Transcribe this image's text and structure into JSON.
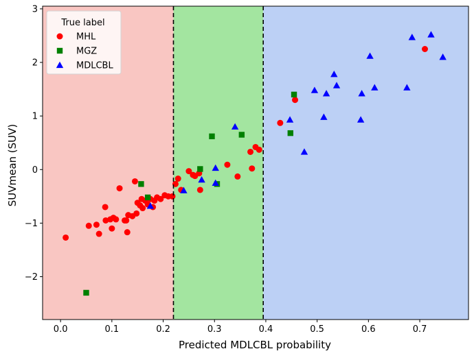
{
  "chart_data": {
    "type": "scatter",
    "title": "",
    "xlabel": "Predicted MDLCBL probability",
    "ylabel": "SUVmean (SUV)",
    "xlim": [
      -0.035,
      0.795
    ],
    "ylim": [
      -2.8,
      3.05
    ],
    "xticks": [
      0.0,
      0.1,
      0.2,
      0.3,
      0.4,
      0.5,
      0.6,
      0.7
    ],
    "xtick_labels": [
      "0.0",
      "0.1",
      "0.2",
      "0.3",
      "0.4",
      "0.5",
      "0.6",
      "0.7"
    ],
    "yticks": [
      -2,
      -1,
      0,
      1,
      2,
      3
    ],
    "ytick_labels": [
      "−2",
      "−1",
      "0",
      "1",
      "2",
      "3"
    ],
    "grid": false,
    "thresholds": [
      0.22,
      0.395
    ],
    "regions": [
      {
        "from": -0.035,
        "to": 0.22,
        "color": "#f9c6c2"
      },
      {
        "from": 0.22,
        "to": 0.395,
        "color": "#a3e5a0"
      },
      {
        "from": 0.395,
        "to": 0.795,
        "color": "#bcd0f5"
      }
    ],
    "legend": {
      "title": "True label",
      "placement": "top-left",
      "entries": [
        "MHL",
        "MGZ",
        "MDLCBL"
      ]
    },
    "series": [
      {
        "name": "MHL",
        "marker": "circle",
        "color": "#ff0000",
        "points": [
          [
            0.01,
            -1.27
          ],
          [
            0.055,
            -1.05
          ],
          [
            0.07,
            -1.03
          ],
          [
            0.075,
            -1.2
          ],
          [
            0.087,
            -0.7
          ],
          [
            0.088,
            -0.95
          ],
          [
            0.097,
            -0.93
          ],
          [
            0.1,
            -1.1
          ],
          [
            0.103,
            -0.9
          ],
          [
            0.108,
            -0.93
          ],
          [
            0.115,
            -0.35
          ],
          [
            0.125,
            -0.95
          ],
          [
            0.128,
            -0.95
          ],
          [
            0.13,
            -1.17
          ],
          [
            0.132,
            -0.85
          ],
          [
            0.14,
            -0.87
          ],
          [
            0.145,
            -0.22
          ],
          [
            0.148,
            -0.82
          ],
          [
            0.15,
            -0.62
          ],
          [
            0.155,
            -0.67
          ],
          [
            0.158,
            -0.55
          ],
          [
            0.16,
            -0.72
          ],
          [
            0.165,
            -0.58
          ],
          [
            0.17,
            -0.65
          ],
          [
            0.175,
            -0.55
          ],
          [
            0.18,
            -0.7
          ],
          [
            0.183,
            -0.58
          ],
          [
            0.188,
            -0.52
          ],
          [
            0.195,
            -0.55
          ],
          [
            0.203,
            -0.48
          ],
          [
            0.21,
            -0.5
          ],
          [
            0.218,
            -0.5
          ],
          [
            0.224,
            -0.27
          ],
          [
            0.229,
            -0.17
          ],
          [
            0.235,
            -0.38
          ],
          [
            0.25,
            -0.03
          ],
          [
            0.258,
            -0.1
          ],
          [
            0.262,
            -0.12
          ],
          [
            0.27,
            -0.07
          ],
          [
            0.272,
            -0.38
          ],
          [
            0.325,
            0.09
          ],
          [
            0.345,
            -0.13
          ],
          [
            0.37,
            0.33
          ],
          [
            0.373,
            0.02
          ],
          [
            0.38,
            0.42
          ],
          [
            0.387,
            0.37
          ],
          [
            0.428,
            0.87
          ],
          [
            0.457,
            1.3
          ],
          [
            0.71,
            2.25
          ]
        ]
      },
      {
        "name": "MGZ",
        "marker": "square",
        "color": "#008000",
        "points": [
          [
            0.05,
            -2.3
          ],
          [
            0.157,
            -0.27
          ],
          [
            0.17,
            -0.52
          ],
          [
            0.272,
            0.01
          ],
          [
            0.295,
            0.62
          ],
          [
            0.305,
            -0.27
          ],
          [
            0.353,
            0.65
          ],
          [
            0.448,
            0.68
          ],
          [
            0.455,
            1.4
          ]
        ]
      },
      {
        "name": "MDLCBL",
        "marker": "triangle",
        "color": "#0000ff",
        "points": [
          [
            0.175,
            -0.68
          ],
          [
            0.24,
            -0.39
          ],
          [
            0.275,
            -0.19
          ],
          [
            0.302,
            0.03
          ],
          [
            0.302,
            -0.25
          ],
          [
            0.34,
            0.8
          ],
          [
            0.447,
            0.93
          ],
          [
            0.475,
            0.33
          ],
          [
            0.495,
            1.48
          ],
          [
            0.513,
            0.98
          ],
          [
            0.518,
            1.42
          ],
          [
            0.533,
            1.78
          ],
          [
            0.538,
            1.57
          ],
          [
            0.585,
            0.93
          ],
          [
            0.587,
            1.42
          ],
          [
            0.603,
            2.12
          ],
          [
            0.612,
            1.53
          ],
          [
            0.675,
            1.53
          ],
          [
            0.685,
            2.47
          ],
          [
            0.722,
            2.52
          ],
          [
            0.745,
            2.1
          ]
        ]
      }
    ]
  }
}
